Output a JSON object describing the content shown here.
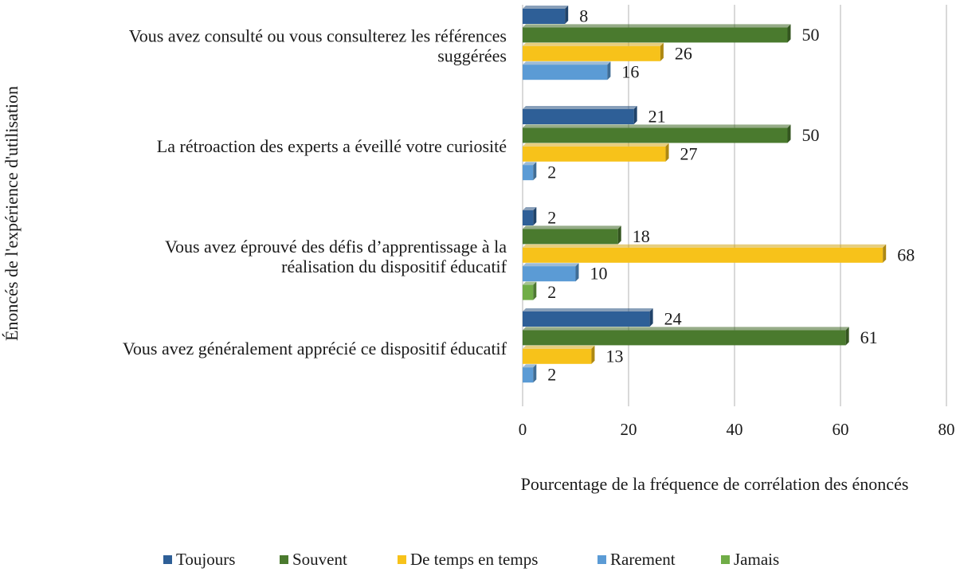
{
  "chart_data": {
    "type": "bar",
    "orientation": "horizontal",
    "title": "",
    "xlabel": "Pourcentage de la fréquence de corrélation des énoncés",
    "ylabel": "Énoncés de l'expérience d'utilisation",
    "xlim": [
      0,
      80
    ],
    "xticks": [
      0,
      20,
      40,
      60,
      80
    ],
    "grid": "vertical",
    "legend_position": "bottom",
    "categories": [
      [
        "Vous avez consulté ou vous consulterez les références",
        "suggérées"
      ],
      [
        "La rétroaction des experts a éveillé votre curiosité"
      ],
      [
        "Vous avez éprouvé des défis d’apprentissage à la",
        "réalisation du dispositif éducatif"
      ],
      [
        "Vous avez généralement apprécié ce dispositif éducatif"
      ]
    ],
    "series": [
      {
        "name": "Toujours",
        "color": "#2e5f97",
        "values": [
          8,
          21,
          2,
          24
        ]
      },
      {
        "name": "Souvent",
        "color": "#4a7a2e",
        "values": [
          50,
          50,
          18,
          61
        ]
      },
      {
        "name": "De temps en temps",
        "color": "#f7c21a",
        "values": [
          26,
          27,
          68,
          13
        ]
      },
      {
        "name": "Rarement",
        "color": "#5b9bd5",
        "values": [
          16,
          2,
          10,
          2
        ]
      },
      {
        "name": "Jamais",
        "color": "#70ad47",
        "values": [
          null,
          null,
          2,
          null
        ]
      }
    ]
  }
}
